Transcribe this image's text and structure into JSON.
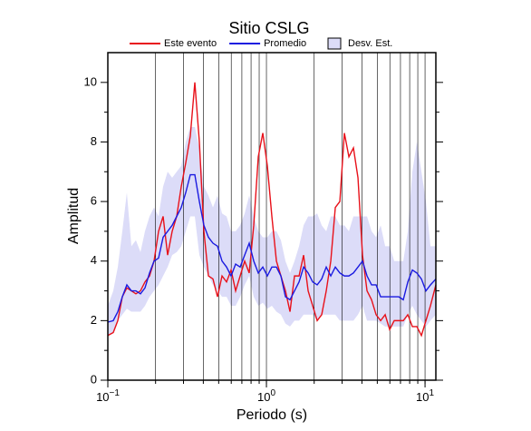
{
  "chart_data": {
    "type": "line",
    "title": "Sitio CSLG",
    "xlabel": "Periodo (s)",
    "ylabel": "Amplitud",
    "log_x": true,
    "xlim": [
      0.1,
      11.7
    ],
    "ylim": [
      0,
      11
    ],
    "xticks": [
      {
        "value": 0.1,
        "label": "10−1"
      },
      {
        "value": 1,
        "label": "100"
      },
      {
        "value": 10,
        "label": "101"
      }
    ],
    "xgrid": [
      0.2,
      0.3,
      0.4,
      0.5,
      0.6,
      0.7,
      0.8,
      0.9,
      1,
      2,
      3,
      4,
      5,
      6,
      7,
      8,
      9,
      10
    ],
    "yticks": [
      0,
      2,
      4,
      6,
      8,
      10
    ],
    "yminor": [
      1,
      3,
      5,
      7,
      9
    ],
    "legend": "top",
    "x": [
      0.1,
      0.1082,
      0.1156,
      0.1234,
      0.1318,
      0.1408,
      0.1503,
      0.1606,
      0.1715,
      0.1832,
      0.1956,
      0.2089,
      0.2231,
      0.2383,
      0.2545,
      0.2718,
      0.2903,
      0.31,
      0.3311,
      0.3536,
      0.3777,
      0.4034,
      0.4308,
      0.4601,
      0.4914,
      0.5248,
      0.5605,
      0.5986,
      0.6393,
      0.6828,
      0.7292,
      0.7788,
      0.8318,
      0.8883,
      0.9487,
      1.013,
      1.082,
      1.156,
      1.234,
      1.318,
      1.408,
      1.503,
      1.606,
      1.715,
      1.832,
      1.956,
      2.089,
      2.231,
      2.383,
      2.545,
      2.718,
      2.903,
      3.1,
      3.311,
      3.536,
      3.777,
      4.034,
      4.308,
      4.601,
      4.914,
      5.248,
      5.605,
      5.986,
      6.393,
      6.828,
      7.292,
      7.788,
      8.318,
      8.883,
      9.487,
      10.13,
      10.82,
      11.7
    ],
    "band": {
      "name": "Desv. Est.",
      "color": "#dcdcf8",
      "edge": "#000000",
      "lower": [
        1.5,
        1.6,
        2.0,
        2.2,
        2.4,
        2.3,
        2.3,
        2.3,
        2.5,
        2.8,
        3.0,
        3.2,
        3.5,
        3.8,
        4.2,
        4.3,
        4.5,
        5.0,
        5.5,
        5.5,
        4.2,
        3.8,
        3.5,
        3.2,
        3.0,
        2.8,
        2.8,
        2.5,
        2.5,
        2.8,
        3.2,
        3.5,
        2.8,
        2.5,
        2.6,
        2.4,
        2.5,
        2.3,
        2.2,
        1.9,
        1.8,
        2.0,
        2.0,
        2.2,
        2.2,
        2.2,
        2.0,
        2.2,
        2.2,
        2.2,
        2.2,
        2.0,
        2.0,
        2.0,
        2.0,
        2.2,
        2.5,
        2.0,
        2.0,
        2.0,
        1.9,
        1.8,
        1.8,
        1.8,
        1.8,
        1.8,
        2.2,
        2.5,
        2.2,
        2.0,
        1.8,
        2.0,
        2.2
      ],
      "upper": [
        2.5,
        3.0,
        3.8,
        5.0,
        6.3,
        4.5,
        4.7,
        4.3,
        5.0,
        5.5,
        5.8,
        5.5,
        6.5,
        7.0,
        6.8,
        7.0,
        7.2,
        8.0,
        8.5,
        8.5,
        7.8,
        6.5,
        6.2,
        5.8,
        6.2,
        5.6,
        5.5,
        5.0,
        5.0,
        5.2,
        5.6,
        6.2,
        5.5,
        5.0,
        4.8,
        4.8,
        5.0,
        5.0,
        4.7,
        4.0,
        3.6,
        4.0,
        4.5,
        5.2,
        5.5,
        5.5,
        5.6,
        5.2,
        5.0,
        5.5,
        5.5,
        5.2,
        5.2,
        5.0,
        5.5,
        5.5,
        5.5,
        5.5,
        5.0,
        4.8,
        5.2,
        4.5,
        4.5,
        4.0,
        4.0,
        4.0,
        5.0,
        7.0,
        8.0,
        7.0,
        6.0,
        4.5,
        4.5
      ]
    },
    "series": [
      {
        "name": "Este evento",
        "color": "#e8111a",
        "values": [
          1.5,
          1.6,
          2.0,
          2.8,
          3.1,
          3.0,
          2.9,
          3.0,
          3.3,
          3.5,
          4.0,
          5.0,
          5.5,
          4.2,
          5.0,
          5.5,
          6.5,
          7.3,
          8.2,
          10.0,
          8.0,
          5.0,
          3.5,
          3.4,
          2.8,
          3.5,
          3.3,
          3.7,
          3.0,
          3.5,
          4.0,
          3.6,
          5.2,
          7.5,
          8.3,
          7.2,
          5.5,
          4.0,
          3.5,
          3.0,
          2.3,
          3.5,
          3.5,
          4.2,
          3.0,
          2.5,
          2.0,
          2.2,
          3.0,
          4.0,
          5.8,
          6.0,
          8.3,
          7.5,
          7.8,
          6.8,
          4.2,
          3.0,
          2.7,
          2.2,
          2.0,
          2.2,
          1.7,
          2.0,
          2.0,
          2.0,
          2.2,
          1.8,
          1.8,
          1.5,
          2.0,
          2.5,
          3.2
        ]
      },
      {
        "name": "Promedio",
        "color": "#1a1ae0",
        "values": [
          1.95,
          2.0,
          2.3,
          2.8,
          3.2,
          3.0,
          3.0,
          2.9,
          3.1,
          3.6,
          4.0,
          4.1,
          4.8,
          5.0,
          5.2,
          5.5,
          5.8,
          6.3,
          6.9,
          6.9,
          6.0,
          5.2,
          4.8,
          4.6,
          4.5,
          4.0,
          3.8,
          3.5,
          3.9,
          3.8,
          4.2,
          4.6,
          4.0,
          3.6,
          3.8,
          3.5,
          3.8,
          3.8,
          3.5,
          2.8,
          2.7,
          3.0,
          3.3,
          3.8,
          3.6,
          3.3,
          3.2,
          3.4,
          3.8,
          3.5,
          3.8,
          3.6,
          3.5,
          3.5,
          3.6,
          3.8,
          4.0,
          3.5,
          3.2,
          3.2,
          2.8,
          2.8,
          2.8,
          2.8,
          2.8,
          2.7,
          3.3,
          3.7,
          3.6,
          3.4,
          3.0,
          3.2,
          3.4
        ]
      }
    ]
  }
}
